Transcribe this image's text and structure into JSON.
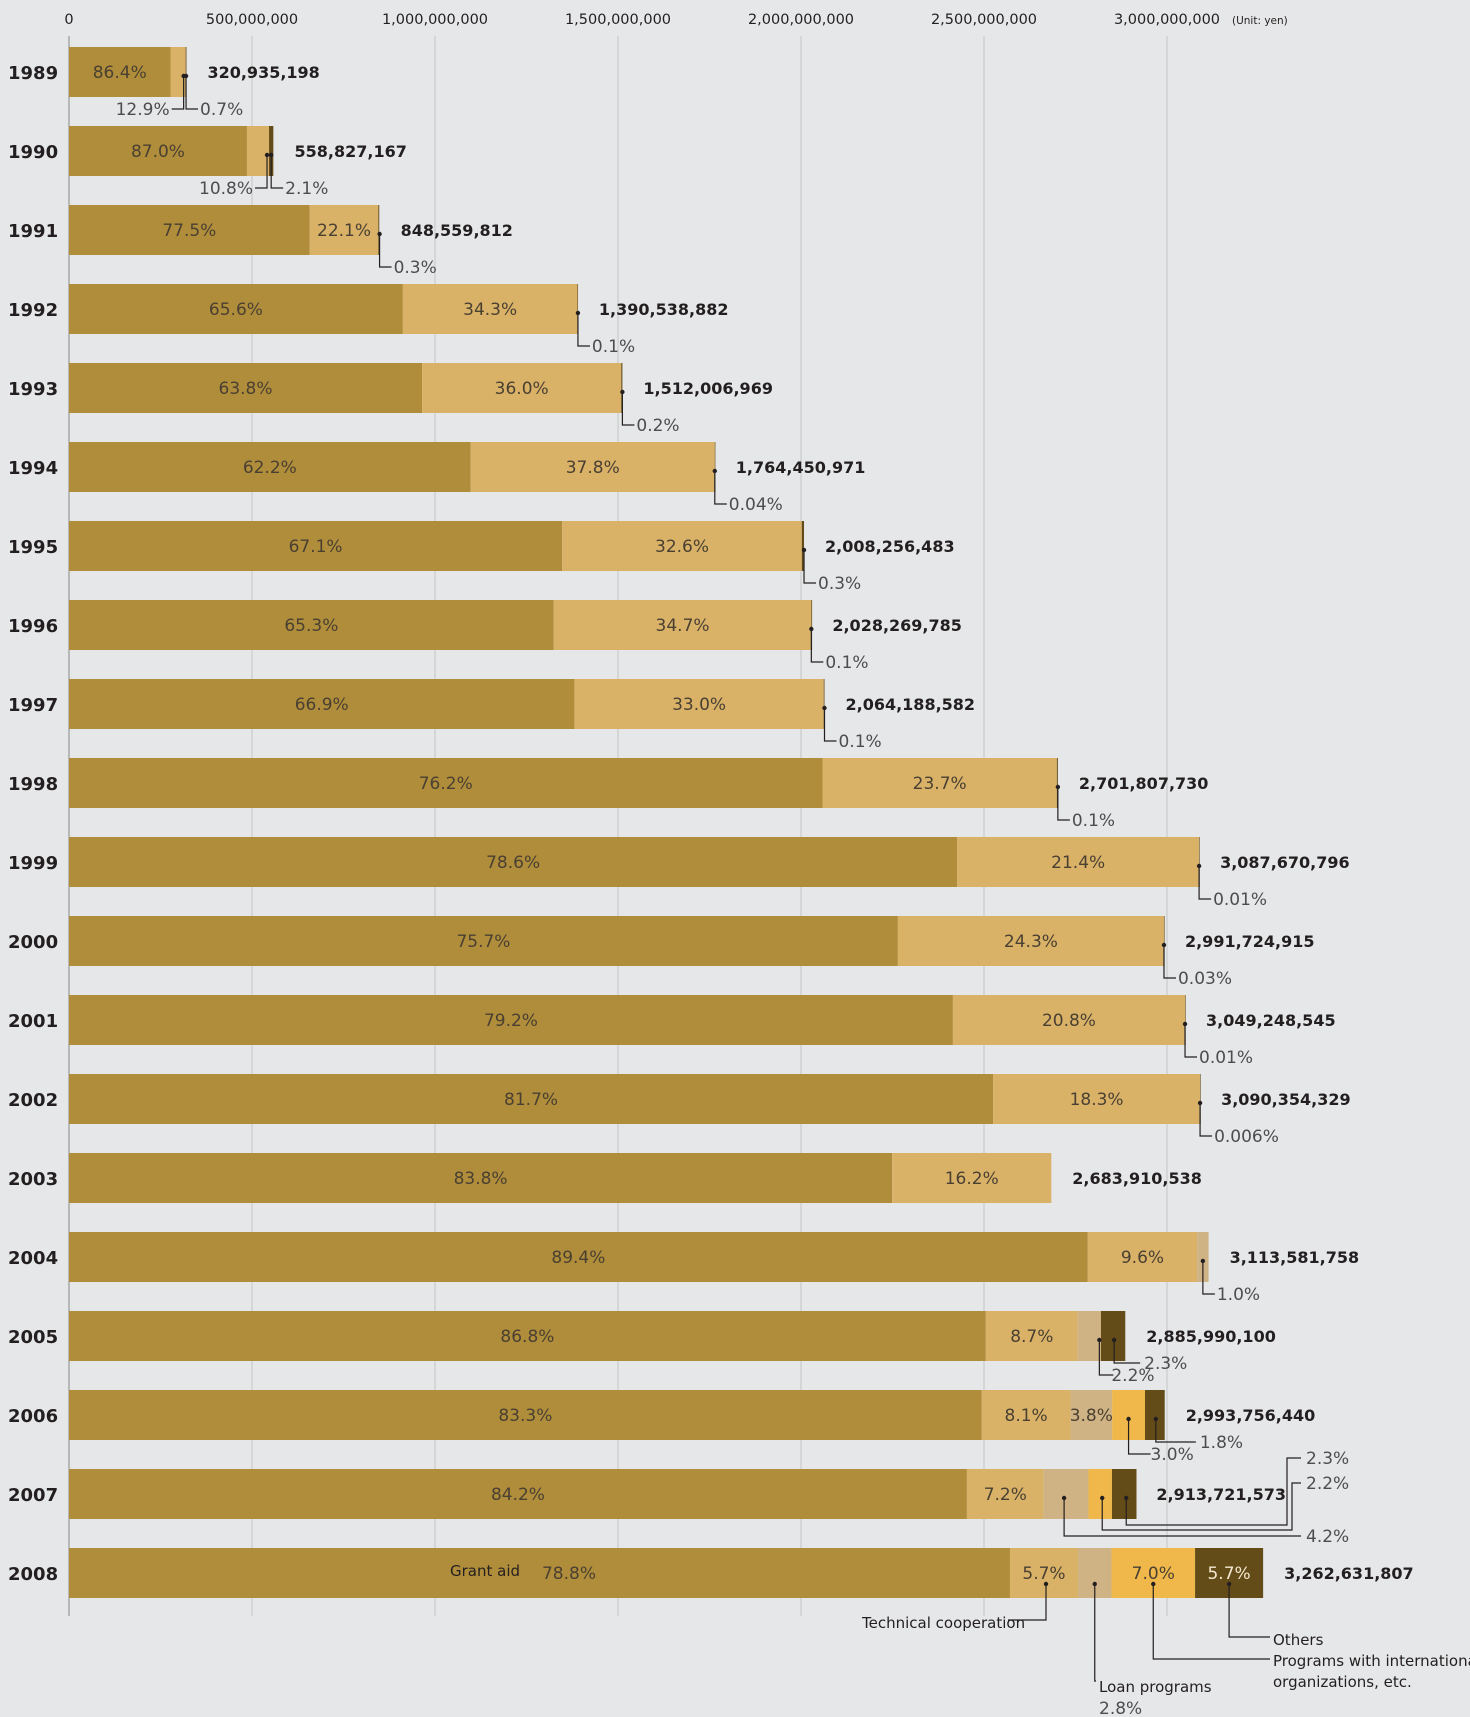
{
  "unit_label": "(Unit: yen)",
  "colors": {
    "grant_aid": "#b08d3a",
    "technical_cooperation": "#d9b268",
    "loan_programs": "#cfb384",
    "international_programs": "#f0b84a",
    "others": "#644c19",
    "background": "#e6e7e8"
  },
  "legend": {
    "grant_aid": "Grant aid",
    "technical_cooperation": "Technical cooperation",
    "loan_programs": "Loan programs",
    "loan_programs_pct": "2.8%",
    "others": "Others",
    "international_line1": "Programs with international",
    "international_line2": "organizations, etc."
  },
  "chart_data": {
    "type": "bar",
    "orientation": "horizontal",
    "stacked": true,
    "xlim": [
      0,
      3250000000
    ],
    "x_ticks": [
      0,
      500000000,
      1000000000,
      1500000000,
      2000000000,
      2500000000,
      3000000000
    ],
    "x_tick_labels": [
      "0",
      "500,000,000",
      "1,000,000,000",
      "1,500,000,000",
      "2,000,000,000",
      "2,500,000,000",
      "3,000,000,000"
    ],
    "grid": true,
    "segment_order": [
      "grant_aid",
      "technical_cooperation",
      "loan_programs",
      "international_programs",
      "others"
    ],
    "series": [
      {
        "key": "grant_aid",
        "name": "Grant aid"
      },
      {
        "key": "technical_cooperation",
        "name": "Technical cooperation"
      },
      {
        "key": "loan_programs",
        "name": "Loan programs"
      },
      {
        "key": "international_programs",
        "name": "Programs with international organizations, etc."
      },
      {
        "key": "others",
        "name": "Others"
      }
    ],
    "years": [
      {
        "year": "1989",
        "total": 320935198,
        "total_label": "320,935,198",
        "segments": [
          {
            "s": "grant_aid",
            "pct": 86.4,
            "label": "86.4%"
          },
          {
            "s": "technical_cooperation",
            "pct": 12.9,
            "label": "12.9%"
          },
          {
            "s": "others",
            "pct": 0.7,
            "label": "0.7%"
          }
        ]
      },
      {
        "year": "1990",
        "total": 558827167,
        "total_label": "558,827,167",
        "segments": [
          {
            "s": "grant_aid",
            "pct": 87.0,
            "label": "87.0%"
          },
          {
            "s": "technical_cooperation",
            "pct": 10.8,
            "label": "10.8%"
          },
          {
            "s": "others",
            "pct": 2.1,
            "label": "2.1%"
          }
        ]
      },
      {
        "year": "1991",
        "total": 848559812,
        "total_label": "848,559,812",
        "segments": [
          {
            "s": "grant_aid",
            "pct": 77.5,
            "label": "77.5%"
          },
          {
            "s": "technical_cooperation",
            "pct": 22.1,
            "label": "22.1%"
          },
          {
            "s": "others",
            "pct": 0.3,
            "label": "0.3%"
          }
        ]
      },
      {
        "year": "1992",
        "total": 1390538882,
        "total_label": "1,390,538,882",
        "segments": [
          {
            "s": "grant_aid",
            "pct": 65.6,
            "label": "65.6%"
          },
          {
            "s": "technical_cooperation",
            "pct": 34.3,
            "label": "34.3%"
          },
          {
            "s": "others",
            "pct": 0.1,
            "label": "0.1%"
          }
        ]
      },
      {
        "year": "1993",
        "total": 1512006969,
        "total_label": "1,512,006,969",
        "segments": [
          {
            "s": "grant_aid",
            "pct": 63.8,
            "label": "63.8%"
          },
          {
            "s": "technical_cooperation",
            "pct": 36.0,
            "label": "36.0%"
          },
          {
            "s": "others",
            "pct": 0.2,
            "label": "0.2%"
          }
        ]
      },
      {
        "year": "1994",
        "total": 1764450971,
        "total_label": "1,764,450,971",
        "segments": [
          {
            "s": "grant_aid",
            "pct": 62.2,
            "label": "62.2%"
          },
          {
            "s": "technical_cooperation",
            "pct": 37.8,
            "label": "37.8%"
          },
          {
            "s": "others",
            "pct": 0.04,
            "label": "0.04%"
          }
        ]
      },
      {
        "year": "1995",
        "total": 2008256483,
        "total_label": "2,008,256,483",
        "segments": [
          {
            "s": "grant_aid",
            "pct": 67.1,
            "label": "67.1%"
          },
          {
            "s": "technical_cooperation",
            "pct": 32.6,
            "label": "32.6%"
          },
          {
            "s": "others",
            "pct": 0.3,
            "label": "0.3%"
          }
        ]
      },
      {
        "year": "1996",
        "total": 2028269785,
        "total_label": "2,028,269,785",
        "segments": [
          {
            "s": "grant_aid",
            "pct": 65.3,
            "label": "65.3%"
          },
          {
            "s": "technical_cooperation",
            "pct": 34.7,
            "label": "34.7%"
          },
          {
            "s": "others",
            "pct": 0.1,
            "label": "0.1%"
          }
        ]
      },
      {
        "year": "1997",
        "total": 2064188582,
        "total_label": "2,064,188,582",
        "segments": [
          {
            "s": "grant_aid",
            "pct": 66.9,
            "label": "66.9%"
          },
          {
            "s": "technical_cooperation",
            "pct": 33.0,
            "label": "33.0%"
          },
          {
            "s": "others",
            "pct": 0.1,
            "label": "0.1%"
          }
        ]
      },
      {
        "year": "1998",
        "total": 2701807730,
        "total_label": "2,701,807,730",
        "segments": [
          {
            "s": "grant_aid",
            "pct": 76.2,
            "label": "76.2%"
          },
          {
            "s": "technical_cooperation",
            "pct": 23.7,
            "label": "23.7%"
          },
          {
            "s": "others",
            "pct": 0.1,
            "label": "0.1%"
          }
        ]
      },
      {
        "year": "1999",
        "total": 3087670796,
        "total_label": "3,087,670,796",
        "segments": [
          {
            "s": "grant_aid",
            "pct": 78.6,
            "label": "78.6%"
          },
          {
            "s": "technical_cooperation",
            "pct": 21.4,
            "label": "21.4%"
          },
          {
            "s": "others",
            "pct": 0.01,
            "label": "0.01%"
          }
        ]
      },
      {
        "year": "2000",
        "total": 2991724915,
        "total_label": "2,991,724,915",
        "segments": [
          {
            "s": "grant_aid",
            "pct": 75.7,
            "label": "75.7%"
          },
          {
            "s": "technical_cooperation",
            "pct": 24.3,
            "label": "24.3%"
          },
          {
            "s": "others",
            "pct": 0.03,
            "label": "0.03%"
          }
        ]
      },
      {
        "year": "2001",
        "total": 3049248545,
        "total_label": "3,049,248,545",
        "segments": [
          {
            "s": "grant_aid",
            "pct": 79.2,
            "label": "79.2%"
          },
          {
            "s": "technical_cooperation",
            "pct": 20.8,
            "label": "20.8%"
          },
          {
            "s": "others",
            "pct": 0.01,
            "label": "0.01%"
          }
        ]
      },
      {
        "year": "2002",
        "total": 3090354329,
        "total_label": "3,090,354,329",
        "segments": [
          {
            "s": "grant_aid",
            "pct": 81.7,
            "label": "81.7%"
          },
          {
            "s": "technical_cooperation",
            "pct": 18.3,
            "label": "18.3%"
          },
          {
            "s": "others",
            "pct": 0.006,
            "label": "0.006%"
          }
        ]
      },
      {
        "year": "2003",
        "total": 2683910538,
        "total_label": "2,683,910,538",
        "segments": [
          {
            "s": "grant_aid",
            "pct": 83.8,
            "label": "83.8%"
          },
          {
            "s": "technical_cooperation",
            "pct": 16.2,
            "label": "16.2%"
          }
        ]
      },
      {
        "year": "2004",
        "total": 3113581758,
        "total_label": "3,113,581,758",
        "segments": [
          {
            "s": "grant_aid",
            "pct": 89.4,
            "label": "89.4%"
          },
          {
            "s": "technical_cooperation",
            "pct": 9.6,
            "label": "9.6%"
          },
          {
            "s": "loan_programs",
            "pct": 1.0,
            "label": "1.0%"
          }
        ]
      },
      {
        "year": "2005",
        "total": 2885990100,
        "total_label": "2,885,990,100",
        "segments": [
          {
            "s": "grant_aid",
            "pct": 86.8,
            "label": "86.8%"
          },
          {
            "s": "technical_cooperation",
            "pct": 8.7,
            "label": "8.7%"
          },
          {
            "s": "loan_programs",
            "pct": 2.2,
            "label": "2.2%"
          },
          {
            "s": "others",
            "pct": 2.3,
            "label": "2.3%"
          }
        ]
      },
      {
        "year": "2006",
        "total": 2993756440,
        "total_label": "2,993,756,440",
        "segments": [
          {
            "s": "grant_aid",
            "pct": 83.3,
            "label": "83.3%"
          },
          {
            "s": "technical_cooperation",
            "pct": 8.1,
            "label": "8.1%"
          },
          {
            "s": "loan_programs",
            "pct": 3.8,
            "label": "3.8%"
          },
          {
            "s": "international_programs",
            "pct": 3.0,
            "label": "3.0%"
          },
          {
            "s": "others",
            "pct": 1.8,
            "label": "1.8%"
          }
        ]
      },
      {
        "year": "2007",
        "total": 2913721573,
        "total_label": "2,913,721,573",
        "segments": [
          {
            "s": "grant_aid",
            "pct": 84.2,
            "label": "84.2%"
          },
          {
            "s": "technical_cooperation",
            "pct": 7.2,
            "label": "7.2%"
          },
          {
            "s": "loan_programs",
            "pct": 4.2,
            "label": "4.2%"
          },
          {
            "s": "international_programs",
            "pct": 2.2,
            "label": "2.2%"
          },
          {
            "s": "others",
            "pct": 2.3,
            "label": "2.3%"
          }
        ]
      },
      {
        "year": "2008",
        "total": 3262631807,
        "total_label": "3,262,631,807",
        "segments": [
          {
            "s": "grant_aid",
            "pct": 78.8,
            "label": "78.8%"
          },
          {
            "s": "technical_cooperation",
            "pct": 5.7,
            "label": "5.7%"
          },
          {
            "s": "loan_programs",
            "pct": 2.8,
            "label": "2.8%"
          },
          {
            "s": "international_programs",
            "pct": 7.0,
            "label": "7.0%"
          },
          {
            "s": "others",
            "pct": 5.7,
            "label": "5.7%"
          }
        ]
      }
    ]
  }
}
